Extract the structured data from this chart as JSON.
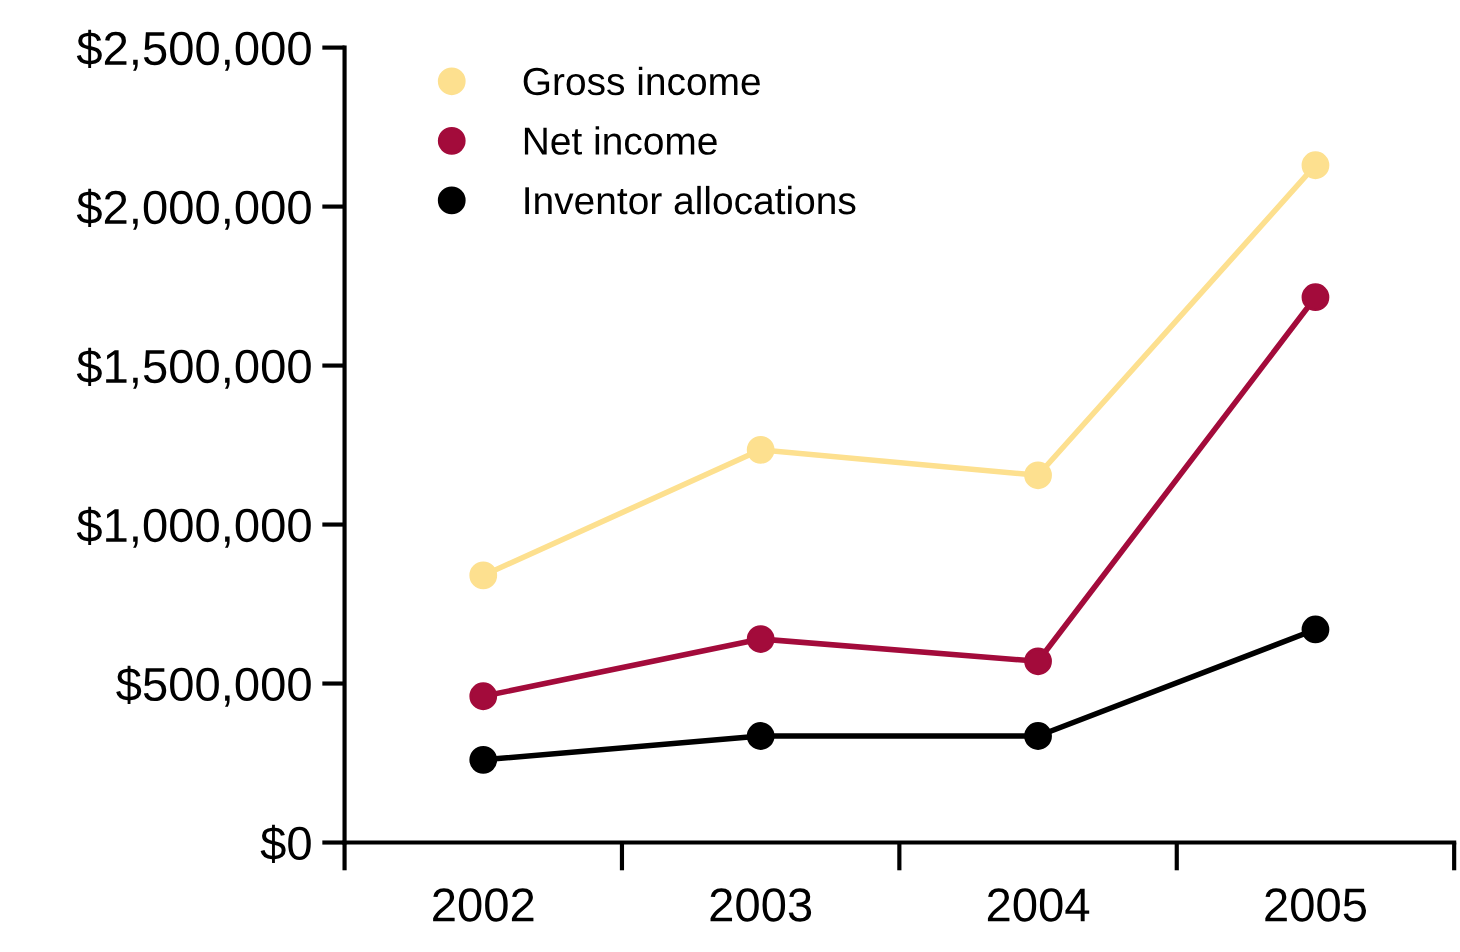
{
  "chart_data": {
    "type": "line",
    "categories": [
      "2002",
      "2003",
      "2004",
      "2005"
    ],
    "series": [
      {
        "name": "Gross income",
        "color": "#fde08f",
        "values": [
          840000,
          1235000,
          1155000,
          2130000
        ]
      },
      {
        "name": "Net income",
        "color": "#a30b3b",
        "values": [
          460000,
          640000,
          570000,
          1715000
        ]
      },
      {
        "name": "Inventor allocations",
        "color": "#000000",
        "values": [
          260000,
          335000,
          335000,
          670000
        ]
      }
    ],
    "ylim": [
      0,
      2500000
    ],
    "yticks": [
      {
        "value": 0,
        "label": "$0"
      },
      {
        "value": 500000,
        "label": "$500,000"
      },
      {
        "value": 1000000,
        "label": "$1,000,000"
      },
      {
        "value": 1500000,
        "label": "$1,500,000"
      },
      {
        "value": 2000000,
        "label": "$2,000,000"
      },
      {
        "value": 2500000,
        "label": "$2,500,000"
      }
    ],
    "marker": "circle",
    "line_style": "solid",
    "grid": false,
    "legend": "top left"
  }
}
